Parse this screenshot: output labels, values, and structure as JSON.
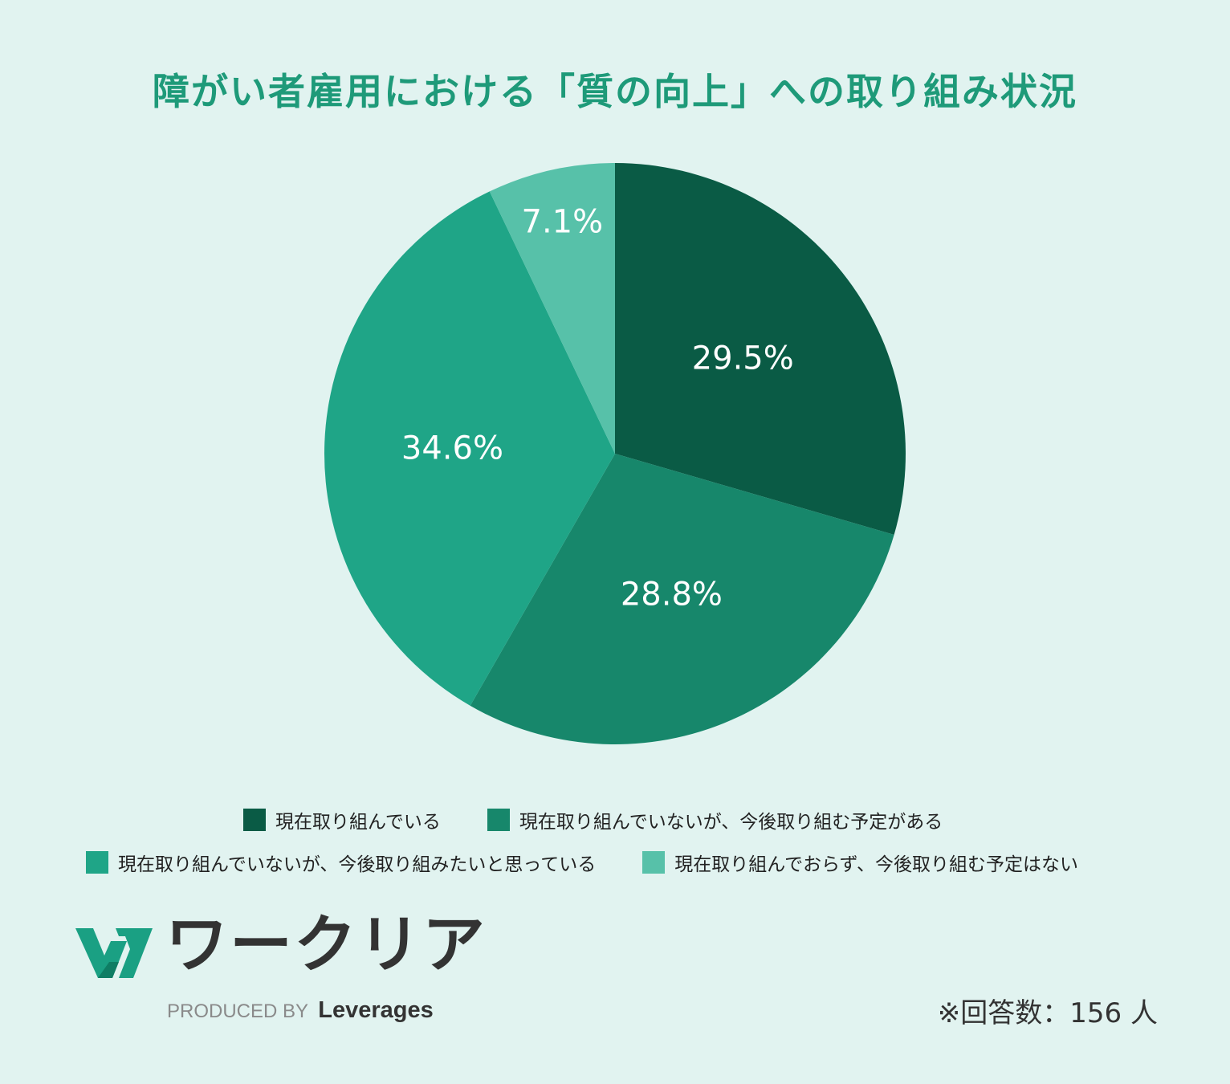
{
  "title": "障がい者雇用における「質の向上」への取り組み状況",
  "chart_data": {
    "type": "pie",
    "title": "障がい者雇用における「質の向上」への取り組み状況",
    "categories": [
      "現在取り組んでいる",
      "現在取り組んでいないが、今後取り組む予定がある",
      "現在取り組んでいないが、今後取り組みたいと思っている",
      "現在取り組んでおらず、今後取り組む予定はない"
    ],
    "values": [
      29.5,
      28.8,
      34.6,
      7.1
    ],
    "labels": [
      "29.5%",
      "28.8%",
      "34.6%",
      "7.1%"
    ],
    "colors": [
      "#0a5b45",
      "#17876b",
      "#1fa587",
      "#57c1a9"
    ],
    "start": "12 o'clock, clockwise",
    "legend_position": "bottom"
  },
  "legend": [
    {
      "label": "現在取り組んでいる",
      "color": "#0a5b45"
    },
    {
      "label": "現在取り組んでいないが、今後取り組む予定がある",
      "color": "#17876b"
    },
    {
      "label": "現在取り組んでいないが、今後取り組みたいと思っている",
      "color": "#1fa587"
    },
    {
      "label": "現在取り組んでおらず、今後取り組む予定はない",
      "color": "#57c1a9"
    }
  ],
  "logo": {
    "name": "ワークリア",
    "produced_by": "PRODUCED BY",
    "brand": "Leverages",
    "icon": "w-logo-icon",
    "icon_color": "#1aa083"
  },
  "note": "※回答数：156 人"
}
